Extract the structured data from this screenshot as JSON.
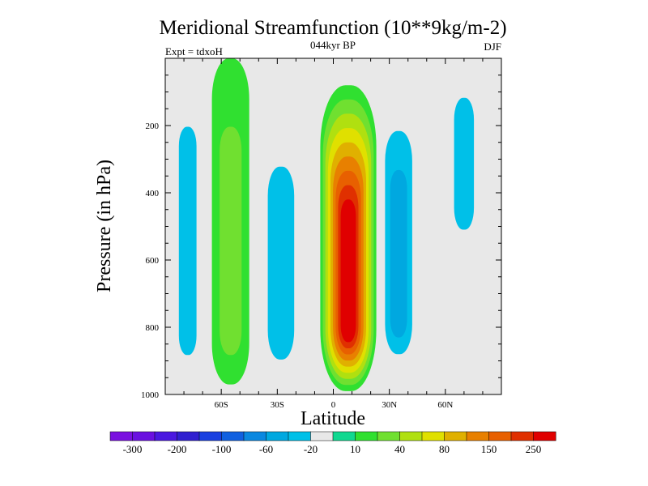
{
  "chart_data": {
    "type": "heatmap",
    "title": "Meridional Streamfunction (10**9kg/m-2)",
    "subtitle_center": "044kyr BP",
    "subtitle_left": "Expt = tdxoH",
    "subtitle_right": "DJF",
    "xlabel": "Latitude",
    "ylabel": "Pressure (in hPa)",
    "xlim": [
      -90,
      90
    ],
    "ylim": [
      1000,
      0
    ],
    "x_ticks": [
      {
        "value": -60,
        "label": "60S"
      },
      {
        "value": -30,
        "label": "30S"
      },
      {
        "value": 0,
        "label": "0"
      },
      {
        "value": 30,
        "label": "30N"
      },
      {
        "value": 60,
        "label": "60N"
      }
    ],
    "y_ticks": [
      {
        "value": 200,
        "label": "200"
      },
      {
        "value": 400,
        "label": "400"
      },
      {
        "value": 600,
        "label": "600"
      },
      {
        "value": 800,
        "label": "800"
      },
      {
        "value": 1000,
        "label": "1000"
      }
    ],
    "background_color": "#e8e8e8",
    "colorbar": {
      "colors": [
        "#7a10e0",
        "#6a10e0",
        "#4a18e0",
        "#3020d0",
        "#1a40e0",
        "#1060e0",
        "#0a88e0",
        "#00a8e0",
        "#00c0e8",
        "#e8e8e8",
        "#10d890",
        "#30e030",
        "#70e030",
        "#b0e010",
        "#e0e000",
        "#e0b000",
        "#e88000",
        "#e86000",
        "#e03000",
        "#e00000"
      ],
      "levels": [
        -300,
        -250,
        -200,
        -150,
        -100,
        -80,
        -60,
        -40,
        -20,
        -10,
        10,
        20,
        40,
        60,
        80,
        100,
        150,
        200,
        250
      ],
      "tick_labels": [
        {
          "index": 1,
          "label": "-300"
        },
        {
          "index": 3,
          "label": "-200"
        },
        {
          "index": 5,
          "label": "-100"
        },
        {
          "index": 7,
          "label": "-60"
        },
        {
          "index": 9,
          "label": "-20"
        },
        {
          "index": 11,
          "label": "10"
        },
        {
          "index": 13,
          "label": "40"
        },
        {
          "index": 15,
          "label": "80"
        },
        {
          "index": 17,
          "label": "150"
        },
        {
          "index": 19,
          "label": "250"
        }
      ]
    },
    "features": [
      {
        "name": "cell-60S-upper",
        "sign": "negative",
        "lat": -78,
        "p_top": 0,
        "p_bottom": 970,
        "halfwidth": 8,
        "levels": [
          -10,
          -20
        ]
      },
      {
        "name": "cell-45S",
        "sign": "positive",
        "lat": -55,
        "p_top": 0,
        "p_bottom": 970,
        "halfwidth": 10,
        "levels": [
          10,
          20
        ]
      },
      {
        "name": "cell-30S",
        "sign": "negative",
        "lat": -28,
        "p_top": 150,
        "p_bottom": 970,
        "halfwidth": 12,
        "levels": [
          -10,
          -20
        ]
      },
      {
        "name": "hadley-cell",
        "sign": "positive",
        "lat": 8,
        "p_top": 80,
        "p_bottom": 990,
        "halfwidth": 15,
        "peak": 250,
        "levels": [
          10,
          20,
          40,
          60,
          80,
          100,
          150,
          200,
          250
        ]
      },
      {
        "name": "cell-35N",
        "sign": "negative",
        "lat": 35,
        "p_top": 100,
        "p_bottom": 930,
        "halfwidth": 10,
        "levels": [
          -10,
          -20,
          -40
        ]
      },
      {
        "name": "cell-60N",
        "sign": "negative",
        "lat": 70,
        "p_top": 0,
        "p_bottom": 560,
        "halfwidth": 9,
        "levels": [
          -10,
          -20
        ]
      }
    ]
  }
}
